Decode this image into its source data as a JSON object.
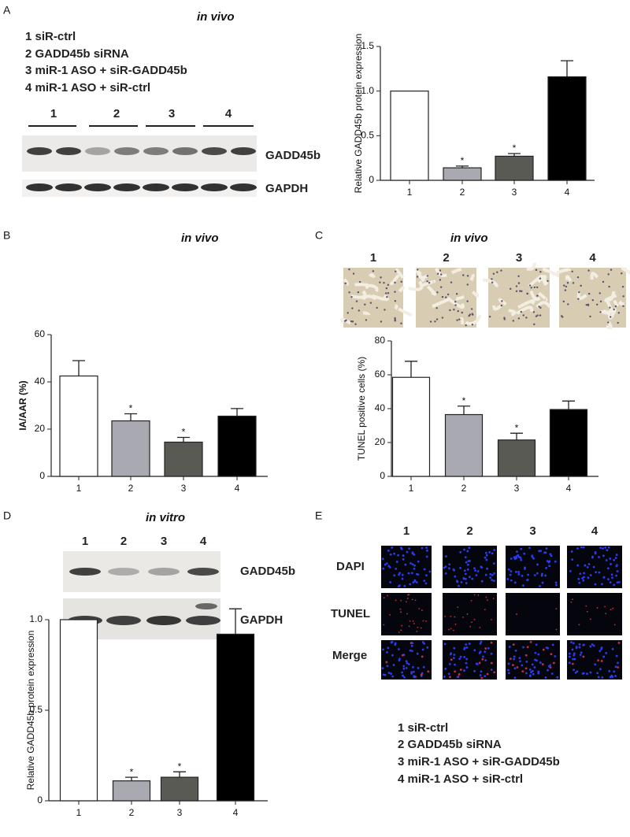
{
  "panel_labels": [
    "A",
    "B",
    "C",
    "D",
    "E"
  ],
  "panel_a": {
    "context": "in vivo",
    "legend": [
      "1 siR-ctrl",
      "2 GADD45b siRNA",
      "3 miR-1 ASO + siR-GADD45b",
      "4 miR-1 ASO + siR-ctrl"
    ],
    "lanes": [
      "1",
      "2",
      "3",
      "4"
    ],
    "blot_labels": [
      "GADD45b",
      "GAPDH"
    ]
  },
  "panel_b": {
    "context": "in vivo"
  },
  "panel_c": {
    "context": "in vivo",
    "image_labels": [
      "1",
      "2",
      "3",
      "4"
    ]
  },
  "panel_d": {
    "context": "in vitro",
    "lanes": [
      "1",
      "2",
      "3",
      "4"
    ],
    "blot_labels": [
      "GADD45b",
      "GAPDH"
    ]
  },
  "panel_e": {
    "columns": [
      "1",
      "2",
      "3",
      "4"
    ],
    "rows": [
      "DAPI",
      "TUNEL",
      "Merge"
    ],
    "legend": [
      "1 siR-ctrl",
      "2 GADD45b siRNA",
      "3 miR-1 ASO + siR-GADD45b",
      "4 miR-1 ASO + siR-ctrl"
    ]
  },
  "chart_data": [
    {
      "type": "bar",
      "ylabel": "Relative GADD45b protein expression",
      "categories": [
        "1",
        "2",
        "3",
        "4"
      ],
      "values": [
        1.0,
        0.14,
        0.27,
        1.16
      ],
      "errors": [
        null,
        0.02,
        0.03,
        0.18
      ],
      "annotations": [
        null,
        "*",
        "*",
        null
      ],
      "colors": [
        "#ffffff",
        "#a9a9b2",
        "#5a5a55",
        "#000000"
      ],
      "ylim": [
        0,
        1.5
      ],
      "yticks": [
        0,
        0.5,
        {
          "value": 1,
          "label": "1.0"
        },
        1.5
      ]
    },
    {
      "type": "bar",
      "ylabel": "IA/AAR (%)",
      "categories": [
        "1",
        "2",
        "3",
        "4"
      ],
      "values": [
        42.5,
        23.5,
        14.5,
        25.5
      ],
      "errors": [
        6.5,
        3,
        2,
        3.2
      ],
      "annotations": [
        null,
        "*",
        "*",
        null
      ],
      "colors": [
        "#ffffff",
        "#a9a9b2",
        "#5a5a55",
        "#000000"
      ],
      "ylim": [
        0,
        60
      ],
      "yticks": [
        0,
        20,
        40,
        60
      ]
    },
    {
      "type": "bar",
      "ylabel": "TUNEL positive cells (%)",
      "categories": [
        "1",
        "2",
        "3",
        "4"
      ],
      "values": [
        58.5,
        36.5,
        21.5,
        39.5
      ],
      "errors": [
        9.5,
        5,
        4,
        5
      ],
      "annotations": [
        null,
        "*",
        "*",
        null
      ],
      "colors": [
        "#ffffff",
        "#a9a9b2",
        "#5a5a55",
        "#000000"
      ],
      "ylim": [
        0,
        80
      ],
      "yticks": [
        0,
        20,
        40,
        60,
        80
      ]
    },
    {
      "type": "bar",
      "ylabel": "Relative GADD45b protein expression",
      "categories": [
        "1",
        "2",
        "3",
        "4"
      ],
      "values": [
        1.0,
        0.11,
        0.13,
        0.92
      ],
      "errors": [
        null,
        0.02,
        0.03,
        0.14
      ],
      "annotations": [
        null,
        "*",
        "*",
        null
      ],
      "colors": [
        "#ffffff",
        "#a9a9b2",
        "#5a5a55",
        "#000000"
      ],
      "ylim": [
        0,
        1.0
      ],
      "yticks": [
        0,
        0.5,
        {
          "value": 1,
          "label": "1.0"
        }
      ]
    }
  ]
}
